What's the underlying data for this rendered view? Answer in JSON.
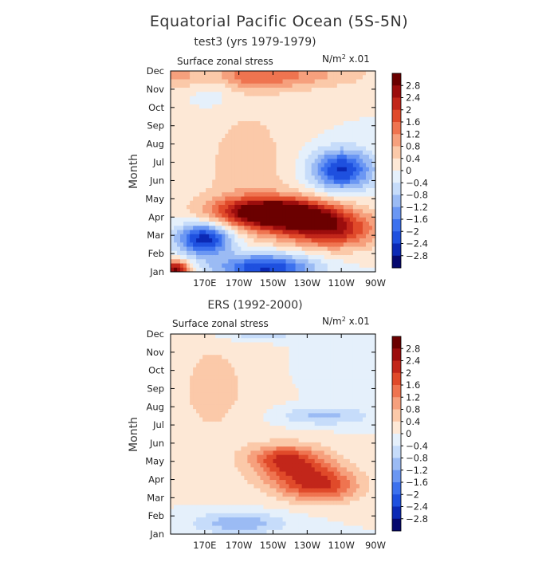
{
  "figure": {
    "title": "Equatorial Pacific Ocean (5S-5N)"
  },
  "chart_data": [
    {
      "type": "heatmap",
      "subtitle": "test3 (yrs 1979-1979)",
      "variable": "Surface zonal stress",
      "units_prefix": "N/m",
      "units_sup": "2",
      "units_suffix": " x.01",
      "ylabel": "Month",
      "x_ticks": [
        "170E",
        "170W",
        "150W",
        "130W",
        "110W",
        "90W"
      ],
      "y_ticks": [
        "Jan",
        "Feb",
        "Mar",
        "Apr",
        "May",
        "Jun",
        "Jul",
        "Aug",
        "Sep",
        "Oct",
        "Nov",
        "Dec"
      ],
      "x_range": [
        "150E",
        "90W"
      ],
      "colorbar_levels": [
        "2.8",
        "2.4",
        "2",
        "1.6",
        "1.2",
        "0.8",
        "0.4",
        "0",
        "-0.4",
        "-0.8",
        "-1.2",
        "-1.6",
        "-2",
        "-2.4",
        "-2.8"
      ],
      "features": [
        {
          "lon": 205,
          "month": 3.3,
          "width": 32,
          "height": 0.8,
          "value": 2.5
        },
        {
          "lon": 225,
          "month": 3.0,
          "width": 30,
          "height": 0.9,
          "value": 2.0
        },
        {
          "lon": 245,
          "month": 2.2,
          "width": 28,
          "height": 1.0,
          "value": 2.0
        },
        {
          "lon": 195,
          "month": 10.8,
          "width": 60,
          "height": 0.8,
          "value": 1.5
        },
        {
          "lon": 195,
          "month": 5.5,
          "width": 30,
          "height": 4.5,
          "value": 0.6
        },
        {
          "lon": 250,
          "month": 5.6,
          "width": 18,
          "height": 1.1,
          "value": -2.5
        },
        {
          "lon": 170,
          "month": 1.8,
          "width": 16,
          "height": 0.9,
          "value": -2.8
        },
        {
          "lon": 205,
          "month": 0.2,
          "width": 28,
          "height": 0.8,
          "value": -2.6
        },
        {
          "lon": 153,
          "month": 0.1,
          "width": 8,
          "height": 0.5,
          "value": 3.0
        },
        {
          "lon": 175,
          "month": 10.8,
          "width": 14,
          "height": 1.5,
          "value": -0.8
        }
      ]
    },
    {
      "type": "heatmap",
      "subtitle": "ERS (1992-2000)",
      "variable": "Surface zonal stress",
      "units_prefix": "N/m",
      "units_sup": "2",
      "units_suffix": " x.01",
      "ylabel": "Month",
      "x_ticks": [
        "170E",
        "170W",
        "150W",
        "130W",
        "110W",
        "90W"
      ],
      "y_ticks": [
        "Jan",
        "Feb",
        "Mar",
        "Apr",
        "May",
        "Jun",
        "Jul",
        "Aug",
        "Sep",
        "Oct",
        "Nov",
        "Dec"
      ],
      "x_range": [
        "150E",
        "90W"
      ],
      "colorbar_levels": [
        "2.8",
        "2.4",
        "2",
        "1.6",
        "1.2",
        "0.8",
        "0.4",
        "0",
        "-0.4",
        "-0.8",
        "-1.2",
        "-1.6",
        "-2",
        "-2.4",
        "-2.8"
      ],
      "features": [
        {
          "lon": 225,
          "month": 3.5,
          "width": 25,
          "height": 1.2,
          "value": 1.6
        },
        {
          "lon": 240,
          "month": 2.6,
          "width": 22,
          "height": 0.9,
          "value": 1.5
        },
        {
          "lon": 215,
          "month": 4.2,
          "width": 18,
          "height": 0.7,
          "value": 1.2
        },
        {
          "lon": 240,
          "month": 6.5,
          "width": 28,
          "height": 0.5,
          "value": -0.9
        },
        {
          "lon": 190,
          "month": 0.6,
          "width": 28,
          "height": 0.6,
          "value": -1.1
        },
        {
          "lon": 245,
          "month": 9.5,
          "width": 18,
          "height": 1.5,
          "value": -0.4
        },
        {
          "lon": 200,
          "month": 11.0,
          "width": 24,
          "height": 0.4,
          "value": -0.8
        },
        {
          "lon": 175,
          "month": 8.0,
          "width": 30,
          "height": 4.0,
          "value": 0.5
        }
      ]
    }
  ]
}
